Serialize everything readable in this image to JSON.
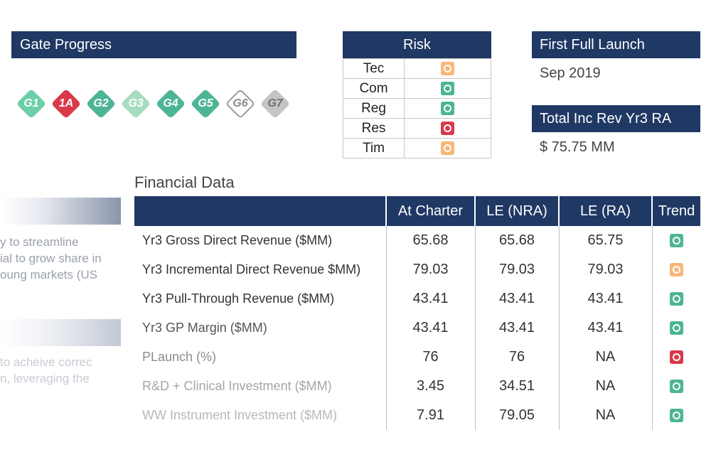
{
  "gate_progress": {
    "title": "Gate Progress",
    "gates": [
      {
        "label": "G1",
        "color": "#6ccfa8"
      },
      {
        "label": "1A",
        "color": "#d93a4a"
      },
      {
        "label": "G2",
        "color": "#4db595"
      },
      {
        "label": "G3",
        "color": "#a8dcbf"
      },
      {
        "label": "G4",
        "color": "#4db595"
      },
      {
        "label": "G5",
        "color": "#4db595"
      },
      {
        "label": "G6",
        "color": "#ffffff"
      },
      {
        "label": "G7",
        "color": "#c4c4c4"
      }
    ]
  },
  "risk": {
    "title": "Risk",
    "rows": [
      {
        "name": "Tec",
        "status": "amber"
      },
      {
        "name": "Com",
        "status": "green"
      },
      {
        "name": "Reg",
        "status": "green"
      },
      {
        "name": "Res",
        "status": "red"
      },
      {
        "name": "Tim",
        "status": "amber"
      }
    ]
  },
  "launch": {
    "title": "First Full Launch",
    "value": "Sep 2019"
  },
  "revenue": {
    "title": "Total Inc Rev Yr3 RA",
    "value": "$ 75.75 MM"
  },
  "left_panel": {
    "text1": [
      "y to streamline",
      "ial to grow share in",
      "oung markets (US"
    ],
    "text2": [
      "to acheive correc",
      "n, leveraging the"
    ]
  },
  "financial": {
    "title": "Financial Data",
    "columns": [
      "",
      "At Charter",
      "LE (NRA)",
      "LE (RA)",
      "Trend"
    ],
    "rows": [
      {
        "metric": "Yr3 Gross Direct Revenue ($MM)",
        "at_charter": "65.68",
        "le_nra": "65.68",
        "le_ra": "65.75",
        "trend": "green"
      },
      {
        "metric": "Yr3 Incremental Direct Revenue $MM)",
        "at_charter": "79.03",
        "le_nra": "79.03",
        "le_ra": "79.03",
        "trend": "amber"
      },
      {
        "metric": "Yr3 Pull-Through Revenue ($MM)",
        "at_charter": "43.41",
        "le_nra": "43.41",
        "le_ra": "43.41",
        "trend": "green"
      },
      {
        "metric": "Yr3 GP Margin ($MM)",
        "at_charter": "43.41",
        "le_nra": "43.41",
        "le_ra": "43.41",
        "trend": "green"
      },
      {
        "metric": "PLaunch (%)",
        "at_charter": "76",
        "le_nra": "76",
        "le_ra": "NA",
        "trend": "red"
      },
      {
        "metric": "R&D + Clinical Investment ($MM)",
        "at_charter": "3.45",
        "le_nra": "34.51",
        "le_ra": "NA",
        "trend": "green"
      },
      {
        "metric": "WW Instrument Investment ($MM)",
        "at_charter": "7.91",
        "le_nra": "79.05",
        "le_ra": "NA",
        "trend": "green"
      }
    ]
  }
}
